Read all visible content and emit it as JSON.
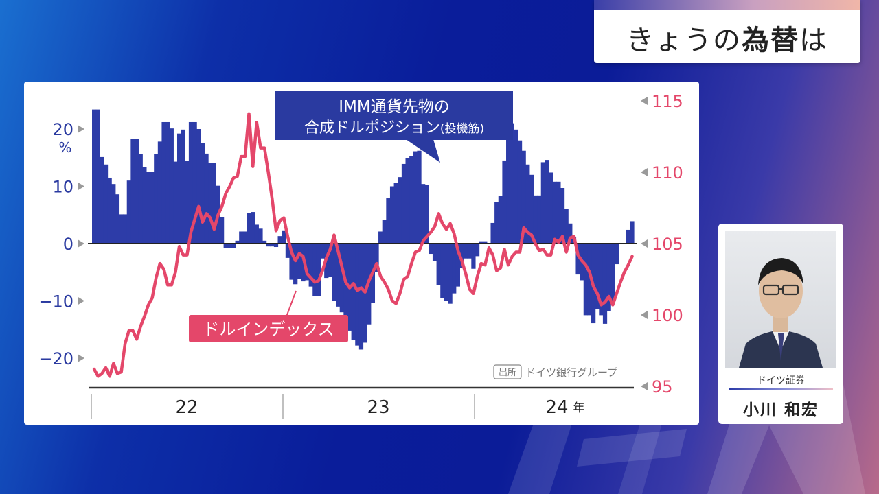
{
  "header": {
    "title_pre": "きょうの",
    "title_bold": "為替",
    "title_post": "は"
  },
  "chart_data": {
    "type": "bar+line",
    "left_axis": {
      "ticks": [
        20,
        10,
        0,
        -10,
        -20
      ],
      "tick_labels": [
        "20",
        "10",
        "0",
        "−10",
        "−20"
      ],
      "unit": "%",
      "range": [
        -23,
        24
      ]
    },
    "right_axis": {
      "ticks": [
        115,
        110,
        105,
        100,
        95
      ],
      "tick_labels": [
        "115",
        "110",
        "105",
        "100",
        "95"
      ],
      "range": [
        95,
        115
      ]
    },
    "x_axis": {
      "labels": [
        "22",
        "23",
        "24"
      ],
      "year_suffix": "年",
      "range": [
        2022.0,
        2024.8
      ]
    },
    "series": [
      {
        "name": "IMM通貨先物の合成ドルポジション(投機筋)",
        "name_line1": "IMM通貨先物の",
        "name_line2": "合成ドルポジション",
        "name_suffix": "(投機筋)",
        "type": "bar",
        "axis": "left",
        "color": "#2d3ca8",
        "x": [
          2022.0,
          2022.02,
          2022.04,
          2022.06,
          2022.08,
          2022.1,
          2022.12,
          2022.14,
          2022.16,
          2022.18,
          2022.2,
          2022.22,
          2022.24,
          2022.26,
          2022.28,
          2022.3,
          2022.32,
          2022.34,
          2022.36,
          2022.38,
          2022.4,
          2022.42,
          2022.44,
          2022.46,
          2022.48,
          2022.5,
          2022.52,
          2022.54,
          2022.56,
          2022.58,
          2022.6,
          2022.62,
          2022.64,
          2022.66,
          2022.68,
          2022.7,
          2022.72,
          2022.74,
          2022.76,
          2022.78,
          2022.8,
          2022.82,
          2022.84,
          2022.86,
          2022.88,
          2022.9,
          2022.92,
          2022.94,
          2022.96,
          2022.98,
          2023.0,
          2023.02,
          2023.04,
          2023.06,
          2023.08,
          2023.1,
          2023.12,
          2023.14,
          2023.16,
          2023.18,
          2023.2,
          2023.22,
          2023.24,
          2023.26,
          2023.28,
          2023.3,
          2023.32,
          2023.34,
          2023.36,
          2023.38,
          2023.4,
          2023.42,
          2023.44,
          2023.46,
          2023.48,
          2023.5,
          2023.52,
          2023.54,
          2023.56,
          2023.58,
          2023.6,
          2023.62,
          2023.64,
          2023.66,
          2023.68,
          2023.7,
          2023.72,
          2023.74,
          2023.76,
          2023.78,
          2023.8,
          2023.82,
          2023.84,
          2023.86,
          2023.88,
          2023.9,
          2023.92,
          2023.94,
          2023.96,
          2023.98,
          2024.0,
          2024.02,
          2024.04,
          2024.06,
          2024.08,
          2024.1,
          2024.12,
          2024.14,
          2024.16,
          2024.18,
          2024.2,
          2024.22,
          2024.24,
          2024.26,
          2024.28,
          2024.3,
          2024.32,
          2024.34,
          2024.36,
          2024.38,
          2024.4,
          2024.42,
          2024.44,
          2024.46,
          2024.48,
          2024.5,
          2024.52,
          2024.54,
          2024.56,
          2024.58,
          2024.6,
          2024.62,
          2024.64,
          2024.66,
          2024.68,
          2024.7,
          2024.72,
          2024.74,
          2024.76,
          2024.78
        ],
        "values": [
          23.4,
          23.4,
          15.1,
          13.8,
          11.5,
          10.4,
          8.6,
          5.1,
          5.1,
          11.0,
          18.3,
          18.3,
          15.6,
          13.3,
          12.5,
          12.5,
          15.6,
          17.8,
          21.2,
          21.2,
          20.1,
          14.3,
          19.2,
          19.9,
          14.4,
          21.2,
          21.2,
          20.0,
          17.5,
          15.7,
          14.1,
          14.1,
          10.1,
          4.6,
          -0.8,
          -0.8,
          -0.8,
          0.5,
          2.1,
          2.1,
          5.3,
          5.5,
          3.3,
          2.6,
          0.5,
          -0.5,
          -0.5,
          -0.6,
          1.3,
          2.3,
          -2.5,
          -6.3,
          -7.1,
          -6.2,
          -6.6,
          -6.4,
          -7.5,
          -9.2,
          -9.2,
          -2.6,
          -6.0,
          -5.8,
          -10.0,
          -11.0,
          -12.0,
          -12.5,
          -15.2,
          -16.8,
          -17.8,
          -18.5,
          -17.3,
          -14.1,
          -10.3,
          -5.0,
          2.1,
          4.1,
          7.9,
          10.0,
          10.6,
          11.6,
          13.9,
          14.9,
          15.3,
          16.1,
          16.2,
          10.4,
          10.2,
          -1.8,
          -3.0,
          -7.2,
          -9.5,
          -10.0,
          -10.5,
          -8.7,
          -7.5,
          -4.3,
          -2.6,
          -2.6,
          -4.4,
          -2.2,
          0.4,
          0.4,
          -0.1,
          3.6,
          7.2,
          8.3,
          14.5,
          21.0,
          21.0,
          19.9,
          18.0,
          16.2,
          13.8,
          12.0,
          8.4,
          8.4,
          14.2,
          14.6,
          12.4,
          10.8,
          10.8,
          9.7,
          6.0,
          3.5,
          1.1,
          -5.4,
          -6.4,
          -12.5,
          -12.5,
          -13.9,
          -11.5,
          -12.5,
          -14.0,
          -11.8,
          -10.0,
          -3.6,
          0.0,
          0.1,
          2.4,
          3.9
        ]
      },
      {
        "name": "ドルインデックス",
        "type": "line",
        "axis": "right",
        "color": "#e4476a",
        "x": [
          2022.0,
          2022.02,
          2022.04,
          2022.06,
          2022.08,
          2022.1,
          2022.12,
          2022.14,
          2022.16,
          2022.18,
          2022.2,
          2022.22,
          2022.24,
          2022.26,
          2022.28,
          2022.3,
          2022.32,
          2022.34,
          2022.36,
          2022.38,
          2022.4,
          2022.42,
          2022.44,
          2022.46,
          2022.48,
          2022.5,
          2022.52,
          2022.54,
          2022.56,
          2022.58,
          2022.6,
          2022.62,
          2022.64,
          2022.66,
          2022.68,
          2022.7,
          2022.72,
          2022.74,
          2022.76,
          2022.78,
          2022.8,
          2022.82,
          2022.84,
          2022.86,
          2022.88,
          2022.9,
          2022.92,
          2022.94,
          2022.96,
          2022.98,
          2023.0,
          2023.02,
          2023.04,
          2023.06,
          2023.08,
          2023.1,
          2023.12,
          2023.14,
          2023.16,
          2023.18,
          2023.2,
          2023.22,
          2023.24,
          2023.26,
          2023.28,
          2023.3,
          2023.32,
          2023.34,
          2023.36,
          2023.38,
          2023.4,
          2023.42,
          2023.44,
          2023.46,
          2023.48,
          2023.5,
          2023.52,
          2023.54,
          2023.56,
          2023.58,
          2023.6,
          2023.62,
          2023.64,
          2023.66,
          2023.68,
          2023.7,
          2023.72,
          2023.74,
          2023.76,
          2023.78,
          2023.8,
          2023.82,
          2023.84,
          2023.86,
          2023.88,
          2023.9,
          2023.92,
          2023.94,
          2023.96,
          2023.98,
          2024.0,
          2024.02,
          2024.04,
          2024.06,
          2024.08,
          2024.1,
          2024.12,
          2024.14,
          2024.16,
          2024.18,
          2024.2,
          2024.22,
          2024.24,
          2024.26,
          2024.28,
          2024.3,
          2024.32,
          2024.34,
          2024.36,
          2024.38,
          2024.4,
          2024.42,
          2024.44,
          2024.46,
          2024.48,
          2024.5,
          2024.52,
          2024.54,
          2024.56,
          2024.58,
          2024.6,
          2024.62,
          2024.64,
          2024.66,
          2024.68,
          2024.7,
          2024.72,
          2024.74,
          2024.76,
          2024.78
        ],
        "values": [
          96.2,
          95.7,
          95.9,
          96.3,
          95.7,
          96.6,
          95.9,
          96.0,
          98.0,
          98.9,
          98.9,
          98.3,
          99.2,
          99.9,
          100.7,
          101.2,
          102.6,
          103.6,
          103.2,
          102.1,
          102.1,
          103.0,
          104.8,
          104.2,
          104.2,
          105.8,
          106.7,
          107.6,
          106.5,
          107.1,
          106.8,
          106.0,
          107.0,
          107.6,
          108.5,
          109.0,
          109.6,
          109.7,
          111.1,
          111.1,
          114.1,
          110.4,
          113.5,
          111.7,
          111.7,
          110.0,
          108.1,
          105.9,
          106.6,
          106.8,
          105.5,
          104.4,
          103.8,
          104.3,
          104.1,
          102.9,
          102.6,
          102.3,
          102.4,
          103.1,
          104.0,
          104.6,
          105.6,
          104.5,
          103.4,
          102.3,
          101.9,
          102.2,
          101.7,
          101.9,
          101.6,
          102.4,
          103.0,
          103.6,
          102.7,
          102.3,
          101.8,
          101.0,
          100.8,
          101.5,
          102.5,
          102.7,
          103.6,
          104.4,
          104.5,
          105.2,
          105.5,
          105.8,
          106.2,
          107.1,
          106.4,
          106.0,
          106.4,
          105.7,
          104.5,
          103.8,
          102.9,
          101.8,
          101.5,
          102.7,
          103.6,
          103.5,
          104.7,
          104.2,
          103.1,
          103.3,
          104.6,
          103.5,
          104.1,
          104.4,
          104.4,
          106.1,
          105.8,
          105.6,
          105.0,
          104.5,
          104.6,
          104.2,
          104.2,
          105.3,
          105.1,
          105.5,
          104.4,
          105.4,
          105.5,
          104.2,
          103.8,
          103.5,
          103.0,
          102.0,
          101.5,
          100.7,
          100.9,
          101.3,
          100.7,
          101.5,
          102.3,
          103.0,
          103.5,
          104.1
        ]
      }
    ],
    "source_badge": "出所",
    "source": "ドイツ銀行グループ"
  },
  "guest": {
    "company": "ドイツ証券",
    "name": "小川 和宏"
  },
  "colors": {
    "bar": "#2d3ca8",
    "line": "#e4476a",
    "label_navy": "#2a3aa0",
    "label_pink": "#e4476a"
  }
}
